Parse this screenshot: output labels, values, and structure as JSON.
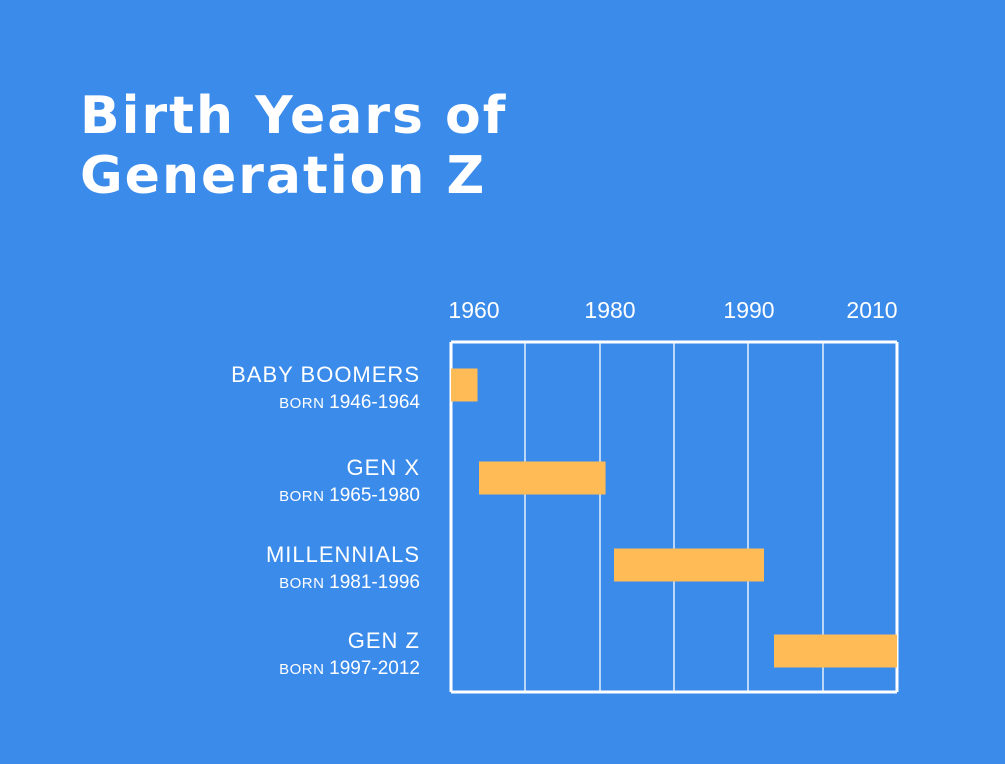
{
  "title": {
    "line1": "Birth Years of",
    "line2": "Generation Z"
  },
  "colors": {
    "background": "#3b8beb",
    "bar": "#ffbb55",
    "grid": "#ffffff",
    "text": "#ffffff"
  },
  "chart_data": {
    "type": "bar",
    "orientation": "horizontal-range",
    "title": "Birth Years of Generation Z",
    "x_tick_labels": [
      "1960",
      "1980",
      "1990",
      "2010"
    ],
    "grid": true,
    "categories": [
      "BABY BOOMERS",
      "GEN X",
      "MILLENNIALS",
      "GEN Z"
    ],
    "subtitles": [
      {
        "prefix": "BORN",
        "range": "1946-1964"
      },
      {
        "prefix": "BORN",
        "range": "1965-1980"
      },
      {
        "prefix": "BORN",
        "range": "1981-1996"
      },
      {
        "prefix": "BORN",
        "range": "1997-2012"
      }
    ],
    "bars": [
      {
        "start": 1946,
        "end": 1964
      },
      {
        "start": 1965,
        "end": 1980
      },
      {
        "start": 1981,
        "end": 1996
      },
      {
        "start": 1997,
        "end": 2012
      }
    ]
  }
}
